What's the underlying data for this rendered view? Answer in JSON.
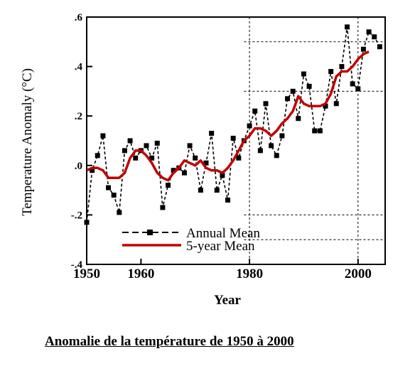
{
  "chart_data": {
    "type": "line",
    "xlabel": "Year",
    "ylabel": "Temperature Anomaly (°C)",
    "xlim": [
      1950,
      2005
    ],
    "ylim": [
      -0.4,
      0.6
    ],
    "x_ticks": [
      1950,
      1960,
      1980,
      2000
    ],
    "x_tick_labels": [
      "1950",
      "1960",
      "1980",
      "2000"
    ],
    "y_ticks": [
      -0.4,
      -0.2,
      0.0,
      0.2,
      0.4,
      0.6
    ],
    "y_tick_labels": [
      "-.4",
      "-.2",
      ".0",
      ".2",
      ".4",
      ".6"
    ],
    "grid": "dashed, partial",
    "legend_position": "bottom-center",
    "series": [
      {
        "name": "Annual Mean",
        "style": "dashed-with-markers",
        "color": "#000000",
        "x": [
          1950,
          1951,
          1952,
          1953,
          1954,
          1955,
          1956,
          1957,
          1958,
          1959,
          1960,
          1961,
          1962,
          1963,
          1964,
          1965,
          1966,
          1967,
          1968,
          1969,
          1970,
          1971,
          1972,
          1973,
          1974,
          1975,
          1976,
          1977,
          1978,
          1979,
          1980,
          1981,
          1982,
          1983,
          1984,
          1985,
          1986,
          1987,
          1988,
          1989,
          1990,
          1991,
          1992,
          1993,
          1994,
          1995,
          1996,
          1997,
          1998,
          1999,
          2000,
          2001,
          2002,
          2003,
          2004
        ],
        "values": [
          -0.23,
          -0.02,
          0.04,
          0.12,
          -0.09,
          -0.12,
          -0.19,
          0.06,
          0.1,
          0.03,
          0.06,
          0.08,
          0.03,
          0.09,
          -0.17,
          -0.08,
          -0.02,
          -0.01,
          -0.03,
          0.08,
          0.03,
          -0.1,
          0.01,
          0.13,
          -0.1,
          -0.04,
          -0.14,
          0.11,
          0.03,
          0.1,
          0.16,
          0.22,
          0.06,
          0.25,
          0.08,
          0.04,
          0.12,
          0.27,
          0.3,
          0.19,
          0.37,
          0.32,
          0.14,
          0.14,
          0.24,
          0.38,
          0.25,
          0.4,
          0.56,
          0.33,
          0.31,
          0.47,
          0.54,
          0.52,
          0.48
        ]
      },
      {
        "name": "5-year Mean",
        "style": "solid",
        "color": "#c00000",
        "x": [
          1950,
          1951,
          1952,
          1953,
          1954,
          1955,
          1956,
          1957,
          1958,
          1959,
          1960,
          1961,
          1962,
          1963,
          1964,
          1965,
          1966,
          1967,
          1968,
          1969,
          1970,
          1971,
          1972,
          1973,
          1974,
          1975,
          1976,
          1977,
          1978,
          1979,
          1980,
          1981,
          1982,
          1983,
          1984,
          1985,
          1986,
          1987,
          1988,
          1989,
          1990,
          1991,
          1992,
          1993,
          1994,
          1995,
          1996,
          1997,
          1998,
          1999,
          2000,
          2001,
          2002
        ],
        "values": [
          -0.02,
          -0.01,
          -0.01,
          -0.02,
          -0.05,
          -0.05,
          -0.05,
          -0.03,
          0.03,
          0.06,
          0.06,
          0.04,
          0.01,
          -0.03,
          -0.05,
          -0.06,
          -0.03,
          -0.01,
          0.02,
          0.01,
          0.0,
          0.02,
          -0.01,
          -0.02,
          -0.02,
          -0.03,
          -0.01,
          0.02,
          0.06,
          0.1,
          0.12,
          0.15,
          0.15,
          0.14,
          0.12,
          0.14,
          0.17,
          0.19,
          0.22,
          0.28,
          0.25,
          0.24,
          0.24,
          0.24,
          0.25,
          0.29,
          0.36,
          0.38,
          0.38,
          0.4,
          0.43,
          0.45,
          0.46
        ]
      }
    ]
  },
  "caption": "Anomalie de la température de 1950 à 2000"
}
